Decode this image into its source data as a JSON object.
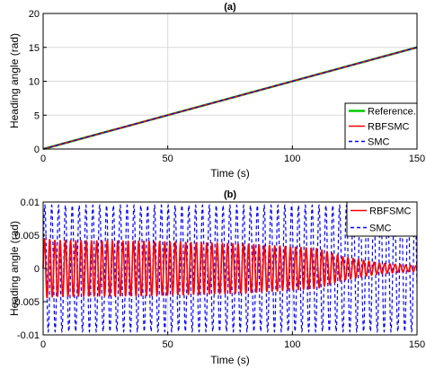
{
  "chart_data": [
    {
      "type": "line",
      "title": "(a)",
      "xlabel": "Time (s)",
      "ylabel": "Heading angle (rad)",
      "xlim": [
        0,
        150
      ],
      "ylim": [
        0,
        20
      ],
      "xticks": [
        "0",
        "50",
        "100",
        "150"
      ],
      "yticks": [
        "0",
        "5",
        "10",
        "15",
        "20"
      ],
      "grid": true,
      "legend_position": "bottom-right",
      "series": [
        {
          "name": "Reference.",
          "color": "#00cc00",
          "style": "solid",
          "x": [
            0,
            150
          ],
          "y": [
            0,
            15
          ]
        },
        {
          "name": "RBFSMC",
          "color": "#ff0000",
          "style": "solid",
          "x": [
            0,
            150
          ],
          "y": [
            0,
            15
          ]
        },
        {
          "name": "SMC",
          "color": "#0000ff",
          "style": "dashed",
          "x": [
            0,
            150
          ],
          "y": [
            0,
            15
          ]
        }
      ]
    },
    {
      "type": "line",
      "title": "(b)",
      "xlabel": "Time (s)",
      "ylabel": "Heading angle (rad)",
      "xlim": [
        0,
        150
      ],
      "ylim": [
        -0.01,
        0.01
      ],
      "xticks": [
        "0",
        "50",
        "100",
        "150"
      ],
      "yticks": [
        "-0.01",
        "-0.005",
        "0",
        "0.005",
        "0.01"
      ],
      "grid": true,
      "legend_position": "top-right",
      "series": [
        {
          "name": "RBFSMC",
          "color": "#ff0000",
          "style": "solid",
          "oscillation_period_s": 2.1,
          "amplitude_t": [
            0,
            5,
            40,
            80,
            110,
            120,
            135,
            150
          ],
          "amplitude": [
            0.0045,
            0.0042,
            0.0041,
            0.0037,
            0.003,
            0.0018,
            0.0008,
            0.0004
          ]
        },
        {
          "name": "SMC",
          "color": "#0000ff",
          "style": "dashed",
          "oscillation_period_s": 2.75,
          "amplitude_t": [
            0,
            150
          ],
          "amplitude": [
            0.0095,
            0.0095
          ]
        }
      ]
    }
  ]
}
